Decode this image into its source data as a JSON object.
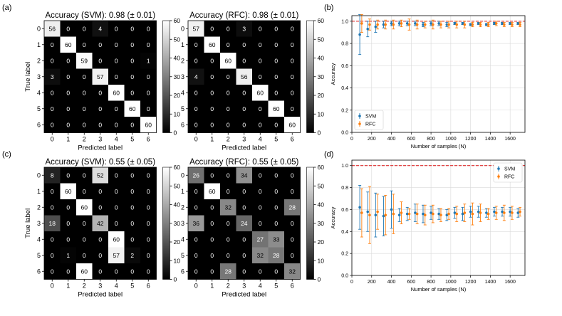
{
  "figure": {
    "panel_labels": [
      "(a)",
      "(b)",
      "(c)",
      "(d)"
    ]
  },
  "chart_data": [
    {
      "type": "heatmap",
      "panel": "(a)",
      "title": "Accuracy (SVM): 0.98 (± 0.01)",
      "xlabel": "Predicted label",
      "ylabel": "True label",
      "x_ticks": [
        "0",
        "1",
        "2",
        "3",
        "4",
        "5",
        "6"
      ],
      "y_ticks": [
        "0",
        "1",
        "2",
        "3",
        "4",
        "5",
        "6"
      ],
      "colorbar": {
        "min": 0,
        "max": 60,
        "ticks": [
          0,
          10,
          20,
          30,
          40,
          50,
          60
        ],
        "colormap": "gray"
      },
      "matrix": [
        [
          56,
          0,
          0,
          4,
          0,
          0,
          0
        ],
        [
          0,
          60,
          0,
          0,
          0,
          0,
          0
        ],
        [
          0,
          0,
          59,
          0,
          0,
          0,
          1
        ],
        [
          3,
          0,
          0,
          57,
          0,
          0,
          0
        ],
        [
          0,
          0,
          0,
          0,
          60,
          0,
          0
        ],
        [
          0,
          0,
          0,
          0,
          0,
          60,
          0
        ],
        [
          0,
          0,
          0,
          0,
          0,
          0,
          60
        ]
      ]
    },
    {
      "type": "heatmap",
      "panel": "(a)",
      "title": "Accuracy (RFC): 0.98 (± 0.01)",
      "xlabel": "Predicted label",
      "ylabel": "",
      "x_ticks": [
        "0",
        "1",
        "2",
        "3",
        "4",
        "5",
        "6"
      ],
      "y_ticks": [
        "0",
        "1",
        "2",
        "3",
        "4",
        "5",
        "6"
      ],
      "colorbar": {
        "min": 0,
        "max": 60,
        "ticks": [
          0,
          10,
          20,
          30,
          40,
          50,
          60
        ],
        "colormap": "gray"
      },
      "matrix": [
        [
          57,
          0,
          0,
          3,
          0,
          0,
          0
        ],
        [
          0,
          60,
          0,
          0,
          0,
          0,
          0
        ],
        [
          0,
          0,
          60,
          0,
          0,
          0,
          0
        ],
        [
          4,
          0,
          0,
          56,
          0,
          0,
          0
        ],
        [
          0,
          0,
          0,
          0,
          60,
          0,
          0
        ],
        [
          0,
          0,
          0,
          0,
          0,
          60,
          0
        ],
        [
          0,
          0,
          0,
          0,
          0,
          0,
          60
        ]
      ]
    },
    {
      "type": "scatter",
      "panel": "(b)",
      "xlabel": "Number of samples (N)",
      "ylabel": "Accuracy",
      "xlim": [
        0,
        1750
      ],
      "ylim": [
        0,
        1.05
      ],
      "x_ticks": [
        0,
        200,
        400,
        600,
        800,
        1000,
        1200,
        1400,
        1600
      ],
      "y_ticks": [
        0.0,
        0.2,
        0.4,
        0.6,
        0.8,
        1.0
      ],
      "grid": true,
      "reference_line": {
        "y": 1.0,
        "color": "#e03030",
        "style": "dashed"
      },
      "legend_position": "lower-left",
      "series": [
        {
          "name": "SVM",
          "color": "#1f77b4",
          "x": [
            80,
            160,
            240,
            320,
            400,
            480,
            560,
            640,
            720,
            800,
            880,
            960,
            1040,
            1120,
            1200,
            1280,
            1360,
            1440,
            1520,
            1600,
            1680
          ],
          "y": [
            0.88,
            0.93,
            0.95,
            0.97,
            0.98,
            0.98,
            0.98,
            0.98,
            0.97,
            0.98,
            0.98,
            0.97,
            0.98,
            0.98,
            0.97,
            0.98,
            0.97,
            0.98,
            0.98,
            0.98,
            0.98
          ],
          "err": [
            0.18,
            0.07,
            0.05,
            0.03,
            0.02,
            0.02,
            0.02,
            0.02,
            0.02,
            0.02,
            0.02,
            0.02,
            0.01,
            0.01,
            0.01,
            0.01,
            0.01,
            0.01,
            0.01,
            0.01,
            0.01
          ]
        },
        {
          "name": "RFC",
          "color": "#ff7f0e",
          "x": [
            100,
            180,
            260,
            340,
            420,
            500,
            580,
            660,
            740,
            820,
            900,
            980,
            1060,
            1140,
            1220,
            1300,
            1380,
            1460,
            1540,
            1620,
            1700
          ],
          "y": [
            0.98,
            0.97,
            0.97,
            0.97,
            0.97,
            0.98,
            0.97,
            0.97,
            0.97,
            0.97,
            0.97,
            0.97,
            0.97,
            0.97,
            0.97,
            0.97,
            0.97,
            0.98,
            0.97,
            0.97,
            0.97
          ],
          "err": [
            0.08,
            0.05,
            0.04,
            0.04,
            0.04,
            0.03,
            0.05,
            0.04,
            0.03,
            0.04,
            0.03,
            0.03,
            0.03,
            0.03,
            0.02,
            0.02,
            0.02,
            0.02,
            0.02,
            0.02,
            0.02
          ]
        }
      ]
    },
    {
      "type": "heatmap",
      "panel": "(c)",
      "title": "Accuracy (SVM): 0.55 (± 0.05)",
      "xlabel": "Predicted label",
      "ylabel": "True label",
      "x_ticks": [
        "0",
        "1",
        "2",
        "3",
        "4",
        "5",
        "6"
      ],
      "y_ticks": [
        "0",
        "1",
        "2",
        "3",
        "4",
        "5",
        "6"
      ],
      "colorbar": {
        "min": 0,
        "max": 60,
        "ticks": [
          0,
          10,
          20,
          30,
          40,
          50,
          60
        ],
        "colormap": "gray"
      },
      "matrix": [
        [
          8,
          0,
          0,
          52,
          0,
          0,
          0
        ],
        [
          0,
          60,
          0,
          0,
          0,
          0,
          0
        ],
        [
          0,
          0,
          60,
          0,
          0,
          0,
          0
        ],
        [
          18,
          0,
          0,
          42,
          0,
          0,
          0
        ],
        [
          0,
          0,
          0,
          0,
          60,
          0,
          0
        ],
        [
          0,
          1,
          0,
          0,
          57,
          2,
          0
        ],
        [
          0,
          0,
          60,
          0,
          0,
          0,
          0
        ]
      ]
    },
    {
      "type": "heatmap",
      "panel": "(c)",
      "title": "Accuracy (RFC): 0.55 (± 0.05)",
      "xlabel": "Predicted label",
      "ylabel": "",
      "x_ticks": [
        "0",
        "1",
        "2",
        "3",
        "4",
        "5",
        "6"
      ],
      "y_ticks": [
        "0",
        "1",
        "2",
        "3",
        "4",
        "5",
        "6"
      ],
      "colorbar": {
        "min": 0,
        "max": 60,
        "ticks": [
          0,
          10,
          20,
          30,
          40,
          50,
          60
        ],
        "colormap": "gray"
      },
      "matrix": [
        [
          26,
          0,
          0,
          34,
          0,
          0,
          0
        ],
        [
          0,
          60,
          0,
          0,
          0,
          0,
          0
        ],
        [
          0,
          0,
          32,
          0,
          0,
          0,
          28
        ],
        [
          36,
          0,
          0,
          24,
          0,
          0,
          0
        ],
        [
          0,
          0,
          0,
          0,
          27,
          33,
          0
        ],
        [
          0,
          0,
          0,
          0,
          32,
          28,
          0
        ],
        [
          0,
          0,
          28,
          0,
          0,
          0,
          32
        ]
      ]
    },
    {
      "type": "scatter",
      "panel": "(d)",
      "xlabel": "Number of samples (N)",
      "ylabel": "Accuracy",
      "xlim": [
        0,
        1750
      ],
      "ylim": [
        0,
        1.05
      ],
      "x_ticks": [
        0,
        200,
        400,
        600,
        800,
        1000,
        1200,
        1400,
        1600
      ],
      "y_ticks": [
        0.0,
        0.2,
        0.4,
        0.6,
        0.8,
        1.0
      ],
      "grid": true,
      "reference_line": {
        "y": 1.0,
        "color": "#e03030",
        "style": "dashed"
      },
      "legend_position": "upper-right",
      "series": [
        {
          "name": "SVM",
          "color": "#1f77b4",
          "x": [
            80,
            160,
            240,
            320,
            400,
            480,
            560,
            640,
            720,
            800,
            880,
            960,
            1040,
            1120,
            1200,
            1280,
            1360,
            1440,
            1520,
            1600,
            1680
          ],
          "y": [
            0.62,
            0.58,
            0.55,
            0.54,
            0.6,
            0.55,
            0.56,
            0.57,
            0.56,
            0.57,
            0.56,
            0.55,
            0.57,
            0.56,
            0.58,
            0.58,
            0.57,
            0.58,
            0.58,
            0.58,
            0.57
          ],
          "err": [
            0.2,
            0.18,
            0.2,
            0.18,
            0.17,
            0.06,
            0.06,
            0.08,
            0.08,
            0.06,
            0.05,
            0.05,
            0.05,
            0.06,
            0.05,
            0.05,
            0.04,
            0.04,
            0.04,
            0.04,
            0.04
          ]
        },
        {
          "name": "RFC",
          "color": "#ff7f0e",
          "x": [
            100,
            180,
            260,
            340,
            420,
            500,
            580,
            660,
            740,
            820,
            900,
            980,
            1060,
            1140,
            1220,
            1300,
            1380,
            1460,
            1540,
            1620,
            1700
          ],
          "y": [
            0.57,
            0.55,
            0.58,
            0.55,
            0.56,
            0.57,
            0.56,
            0.56,
            0.55,
            0.56,
            0.55,
            0.56,
            0.56,
            0.57,
            0.56,
            0.57,
            0.56,
            0.57,
            0.57,
            0.57,
            0.58
          ],
          "err": [
            0.22,
            0.26,
            0.16,
            0.18,
            0.18,
            0.1,
            0.05,
            0.09,
            0.09,
            0.08,
            0.06,
            0.05,
            0.07,
            0.08,
            0.1,
            0.08,
            0.05,
            0.06,
            0.07,
            0.06,
            0.04
          ]
        }
      ]
    }
  ]
}
